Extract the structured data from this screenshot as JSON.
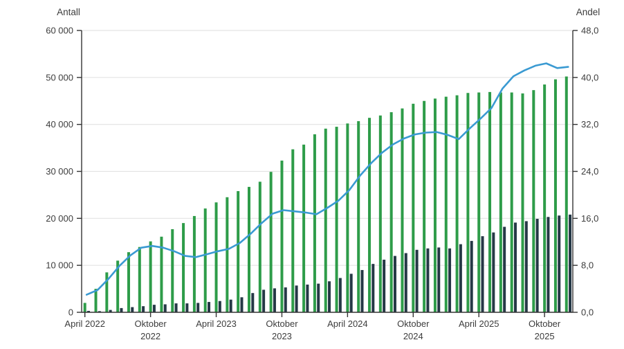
{
  "chart_data": {
    "type": "bar+line",
    "title": "",
    "left_axis": {
      "title": "Antall",
      "min": 0,
      "max": 60000,
      "step": 10000,
      "tick_labels": [
        "0",
        "10 000",
        "20 000",
        "30 000",
        "40 000",
        "50 000",
        "60 000"
      ]
    },
    "right_axis": {
      "title": "Andel",
      "min": 0,
      "max": 48,
      "step": 8,
      "tick_labels": [
        "0,0",
        "8,0",
        "16,0",
        "24,0",
        "32,0",
        "40,0",
        "48,0"
      ]
    },
    "x_axis": {
      "tick_month_indexes": [
        0,
        6,
        12,
        18,
        24,
        30,
        36,
        42
      ],
      "tick_labels": [
        [
          "April 2022"
        ],
        [
          "Oktober",
          "2022"
        ],
        [
          "April 2023"
        ],
        [
          "Oktober",
          "2023"
        ],
        [
          "April 2024"
        ],
        [
          "Oktober",
          "2024"
        ],
        [
          "April 2025"
        ],
        [
          "Oktober",
          "2025"
        ]
      ]
    },
    "months": [
      "2022-04",
      "2022-05",
      "2022-06",
      "2022-07",
      "2022-08",
      "2022-09",
      "2022-10",
      "2022-11",
      "2022-12",
      "2023-01",
      "2023-02",
      "2023-03",
      "2023-04",
      "2023-05",
      "2023-06",
      "2023-07",
      "2023-08",
      "2023-09",
      "2023-10",
      "2023-11",
      "2023-12",
      "2024-01",
      "2024-02",
      "2024-03",
      "2024-04",
      "2024-05",
      "2024-06",
      "2024-07",
      "2024-08",
      "2024-09",
      "2024-10",
      "2024-11",
      "2024-12",
      "2025-01",
      "2025-02",
      "2025-03",
      "2025-04",
      "2025-05",
      "2025-06",
      "2025-07",
      "2025-08",
      "2025-09",
      "2025-10",
      "2025-11",
      "2025-12"
    ],
    "series": [
      {
        "name": "antall-total-green-bars",
        "kind": "bar",
        "axis": "left",
        "color": "#2e9c49",
        "values": [
          2000,
          5000,
          8500,
          11000,
          12800,
          13900,
          15100,
          16100,
          17700,
          19000,
          20500,
          22100,
          23400,
          24500,
          25800,
          26700,
          27800,
          29900,
          32300,
          34700,
          35700,
          37900,
          39100,
          39500,
          40200,
          40700,
          41400,
          41900,
          42600,
          43400,
          44400,
          45000,
          45500,
          45900,
          46200,
          46700,
          46800,
          46900,
          46800,
          46800,
          46600,
          47300,
          48500,
          49600,
          50200
        ]
      },
      {
        "name": "antall-subset-dark-bars",
        "kind": "bar",
        "axis": "left",
        "color": "#253846",
        "values": [
          300,
          250,
          500,
          900,
          1100,
          1300,
          1600,
          1700,
          1900,
          1900,
          2000,
          2200,
          2400,
          2700,
          3200,
          4100,
          4800,
          5100,
          5300,
          5700,
          5900,
          6100,
          6600,
          7300,
          8200,
          9000,
          10300,
          11200,
          12000,
          12600,
          13300,
          13600,
          13800,
          13600,
          14500,
          15200,
          16200,
          17000,
          18200,
          19100,
          19400,
          19900,
          20300,
          20600,
          20800
        ]
      },
      {
        "name": "andel-line",
        "kind": "line",
        "axis": "right",
        "color": "#3a9ad2",
        "values": [
          3.0,
          3.8,
          5.7,
          7.9,
          9.7,
          11.0,
          11.3,
          11.0,
          10.4,
          9.6,
          9.4,
          9.9,
          10.4,
          10.8,
          11.8,
          13.4,
          15.2,
          16.8,
          17.4,
          17.2,
          17.0,
          16.7,
          17.8,
          19.0,
          20.8,
          23.3,
          25.4,
          27.2,
          28.6,
          29.6,
          30.3,
          30.6,
          30.7,
          30.2,
          29.5,
          31.3,
          33.0,
          34.8,
          38.1,
          40.2,
          41.2,
          42.0,
          42.4,
          41.6,
          41.8
        ]
      }
    ],
    "layout_hints": {
      "grid": "horizontal-light-gray",
      "legend": "none",
      "background": "#ffffff",
      "gridline_color": "#e3e3e3",
      "axis_color": "#333333",
      "text_color": "#3c3c3c"
    }
  }
}
